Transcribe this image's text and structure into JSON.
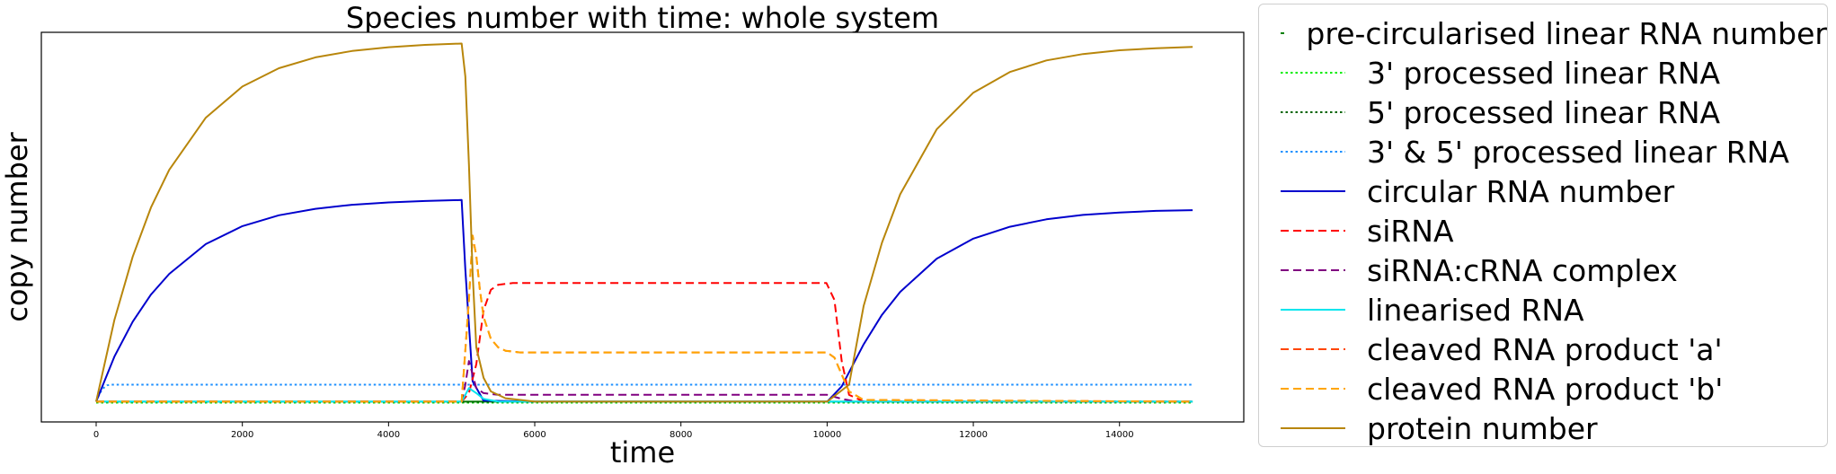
{
  "chart_data": {
    "type": "line",
    "title": "Species number with time: whole system",
    "xlabel": "time",
    "ylabel": "copy number",
    "xlim": [
      -750,
      15700
    ],
    "ylim": [
      -60,
      1090
    ],
    "xticks": [
      0,
      2000,
      4000,
      6000,
      8000,
      10000,
      12000,
      14000
    ],
    "xtick_labels": [
      "0",
      "2000",
      "4000",
      "6000",
      "8000",
      "10000",
      "12000",
      "14000"
    ],
    "grid": false,
    "legend_placement": "outside-right",
    "series": [
      {
        "name": "pre-circularised linear RNA number",
        "color": "#008000",
        "dash": "solid",
        "x": [
          0,
          5000,
          5100,
          10000,
          15000
        ],
        "y": [
          0,
          0,
          0,
          0,
          0
        ]
      },
      {
        "name": "3' processed linear RNA",
        "color": "#00ee00",
        "dash": "dot",
        "x": [
          0,
          5000,
          10000,
          15000
        ],
        "y": [
          -3,
          -3,
          -3,
          -3
        ]
      },
      {
        "name": "5' processed linear RNA",
        "color": "#006400",
        "dash": "dot",
        "x": [
          0,
          5000,
          10000,
          15000
        ],
        "y": [
          -1,
          -1,
          -1,
          -1
        ]
      },
      {
        "name": "3' & 5' processed linear RNA",
        "color": "#1e90ff",
        "dash": "dot",
        "x": [
          0,
          50,
          100,
          150,
          200,
          5000,
          10000,
          15000
        ],
        "y": [
          0,
          25,
          40,
          48,
          50,
          50,
          50,
          50
        ]
      },
      {
        "name": "circular RNA number",
        "color": "#0000cd",
        "dash": "solid",
        "x": [
          0,
          250,
          500,
          750,
          1000,
          1500,
          2000,
          2500,
          3000,
          3500,
          4000,
          4500,
          5000,
          5050,
          5150,
          5300,
          6000,
          10000,
          10200,
          10500,
          10750,
          11000,
          11500,
          12000,
          12500,
          13000,
          13500,
          14000,
          14500,
          15000
        ],
        "y": [
          0,
          133,
          236,
          316,
          377,
          465,
          518,
          550,
          569,
          581,
          588,
          592,
          595,
          390,
          60,
          3,
          0,
          0,
          45,
          169,
          256,
          324,
          422,
          481,
          516,
          538,
          551,
          558,
          563,
          565
        ]
      },
      {
        "name": "siRNA",
        "color": "#ff0000",
        "dash": "dash",
        "x": [
          0,
          5000,
          5100,
          5200,
          5300,
          5400,
          5500,
          5700,
          6000,
          8000,
          9990,
          10100,
          10200,
          10300,
          10500,
          15000
        ],
        "y": [
          0,
          0,
          25,
          110,
          270,
          330,
          345,
          350,
          350,
          350,
          350,
          300,
          120,
          20,
          0,
          0
        ]
      },
      {
        "name": "siRNA:cRNA complex",
        "color": "#800080",
        "dash": "dash",
        "x": [
          0,
          5000,
          5050,
          5100,
          5150,
          5200,
          5300,
          5500,
          6000,
          10000,
          10200,
          10400,
          15000
        ],
        "y": [
          0,
          0,
          50,
          120,
          80,
          40,
          25,
          20,
          20,
          20,
          8,
          0,
          0
        ]
      },
      {
        "name": "linearised RNA",
        "color": "#00e5ee",
        "dash": "solid",
        "x": [
          0,
          5000,
          5050,
          5100,
          5200,
          5300,
          5500,
          15000
        ],
        "y": [
          0,
          0,
          20,
          40,
          25,
          8,
          0,
          0
        ]
      },
      {
        "name": "cleaved RNA product 'a'",
        "color": "#ff4500",
        "dash": "dash",
        "x": [
          0,
          5000,
          5100,
          5150,
          5200,
          5250,
          5300,
          5400,
          5500,
          5600,
          5800,
          6000,
          8000,
          10000,
          10100,
          10200,
          10300,
          10500,
          15000
        ],
        "y": [
          0,
          0,
          300,
          490,
          430,
          330,
          250,
          185,
          160,
          150,
          145,
          145,
          145,
          145,
          130,
          80,
          30,
          5,
          0
        ]
      },
      {
        "name": "cleaved RNA product 'b'",
        "color": "#ffa500",
        "dash": "dash",
        "x": [
          0,
          5000,
          5100,
          5150,
          5200,
          5250,
          5300,
          5400,
          5500,
          5600,
          5800,
          6000,
          8000,
          10000,
          10100,
          10200,
          10300,
          10500,
          15000
        ],
        "y": [
          0,
          0,
          300,
          490,
          430,
          330,
          250,
          185,
          160,
          150,
          145,
          145,
          145,
          145,
          130,
          80,
          30,
          5,
          0
        ]
      },
      {
        "name": "protein number",
        "color": "#b8860b",
        "dash": "solid",
        "x": [
          0,
          250,
          500,
          750,
          1000,
          1500,
          2000,
          2500,
          3000,
          3500,
          4000,
          4500,
          5000,
          5050,
          5100,
          5150,
          5200,
          5300,
          5400,
          5600,
          6000,
          10000,
          10300,
          10500,
          10750,
          11000,
          11500,
          12000,
          12500,
          13000,
          13500,
          14000,
          14500,
          15000
        ],
        "y": [
          0,
          241,
          428,
          573,
          684,
          838,
          930,
          984,
          1016,
          1035,
          1046,
          1053,
          1057,
          960,
          700,
          380,
          160,
          70,
          30,
          10,
          0,
          0,
          50,
          282,
          469,
          612,
          804,
          912,
          973,
          1007,
          1026,
          1037,
          1043,
          1047
        ]
      }
    ]
  }
}
